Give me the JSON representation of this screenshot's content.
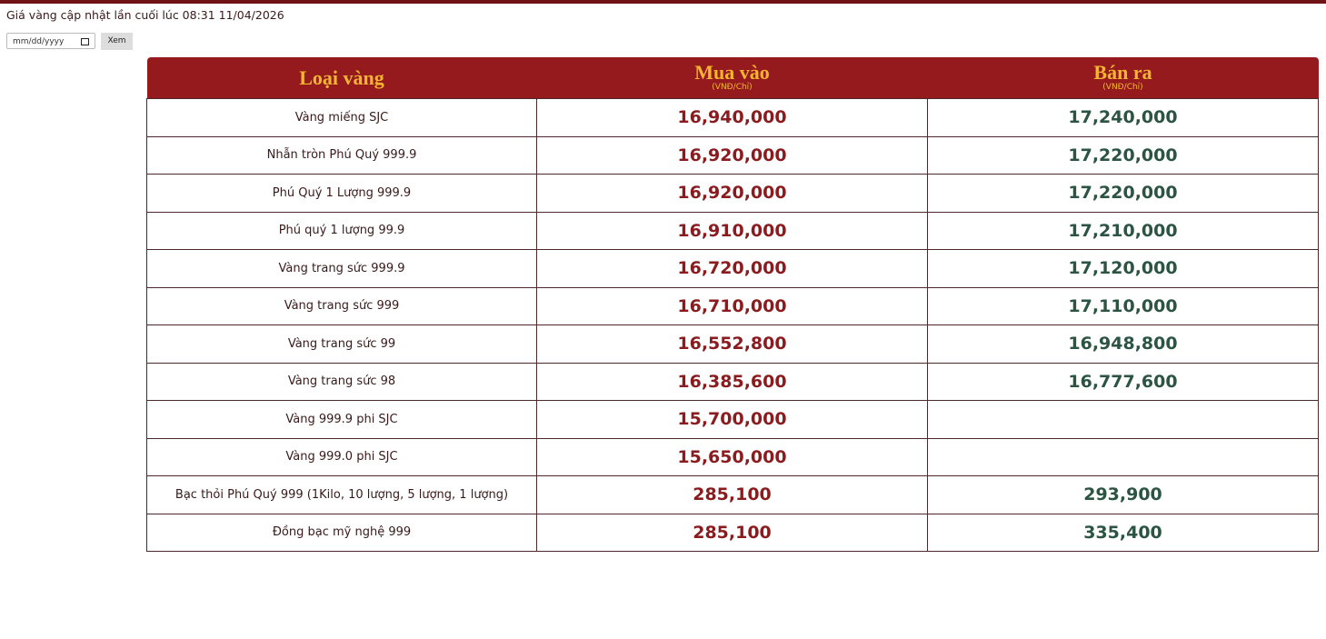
{
  "header": {
    "updated": "Giá vàng cập nhật lần cuối lúc 08:31 11/04/2026"
  },
  "form": {
    "date_placeholder": "mm/dd/yyyy",
    "button": "Xem"
  },
  "table": {
    "columns": [
      {
        "title": "Loại vàng"
      },
      {
        "title": "Mua vào",
        "unit": "(VNĐ/Chỉ)"
      },
      {
        "title": "Bán ra",
        "unit": "(VNĐ/Chỉ)"
      }
    ],
    "rows": [
      {
        "name": "Vàng miếng SJC",
        "buy": "16,940,000",
        "sell": "17,240,000"
      },
      {
        "name": "Nhẫn tròn Phú Quý 999.9",
        "buy": "16,920,000",
        "sell": "17,220,000"
      },
      {
        "name": "Phú Quý 1 Lượng 999.9",
        "buy": "16,920,000",
        "sell": "17,220,000"
      },
      {
        "name": "Phú quý 1 lượng 99.9",
        "buy": "16,910,000",
        "sell": "17,210,000"
      },
      {
        "name": "Vàng trang sức 999.9",
        "buy": "16,720,000",
        "sell": "17,120,000"
      },
      {
        "name": "Vàng trang sức 999",
        "buy": "16,710,000",
        "sell": "17,110,000"
      },
      {
        "name": "Vàng trang sức 99",
        "buy": "16,552,800",
        "sell": "16,948,800"
      },
      {
        "name": "Vàng trang sức 98",
        "buy": "16,385,600",
        "sell": "16,777,600"
      },
      {
        "name": "Vàng 999.9 phi SJC",
        "buy": "15,700,000"
      },
      {
        "name": "Vàng 999.0 phi SJC",
        "buy": "15,650,000"
      },
      {
        "name": "Bạc thỏi Phú Quý 999 (1Kilo, 10 lượng, 5 lượng, 1 lượng)",
        "buy": "285,100",
        "sell": "293,900"
      },
      {
        "name": "Đồng bạc mỹ nghệ 999",
        "buy": "285,100",
        "sell": "335,400"
      }
    ]
  }
}
